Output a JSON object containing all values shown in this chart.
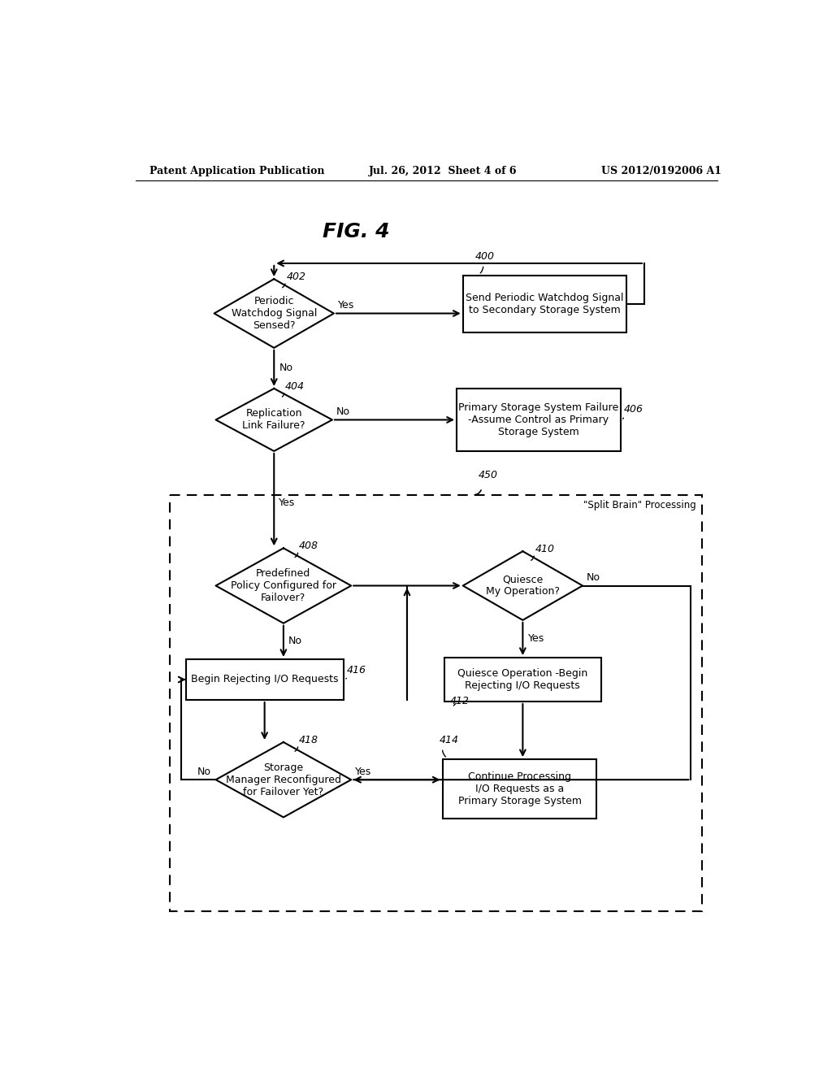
{
  "title": "FIG. 4",
  "header_left": "Patent Application Publication",
  "header_center": "Jul. 26, 2012  Sheet 4 of 6",
  "header_right": "US 2012/0192006 A1",
  "bg_color": "#ffffff",
  "font_main": "DejaVu Sans",
  "font_serif": "DejaVu Serif"
}
